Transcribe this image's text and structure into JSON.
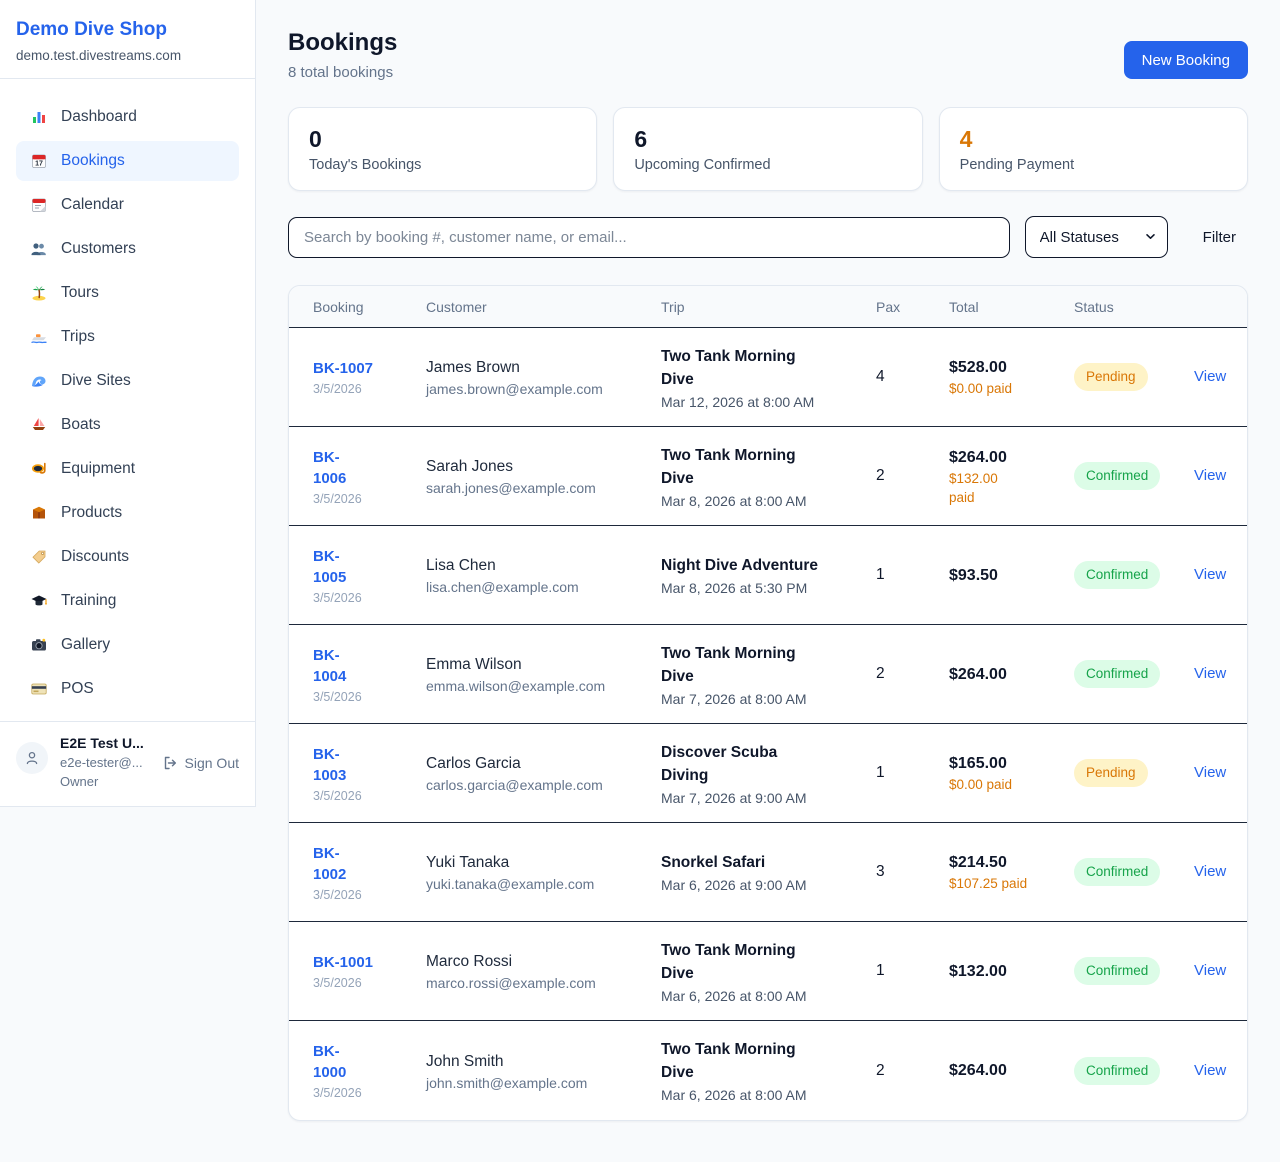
{
  "colors": {
    "accent": "#2563eb",
    "pending": "#d97706",
    "confirmed": "#16a34a"
  },
  "sidebar": {
    "brand": {
      "name": "Demo Dive Shop",
      "domain": "demo.test.divestreams.com"
    },
    "items": [
      {
        "icon": "dashboard",
        "label": "Dashboard",
        "active": false
      },
      {
        "icon": "bookings",
        "label": "Bookings",
        "active": true
      },
      {
        "icon": "calendar",
        "label": "Calendar",
        "active": false
      },
      {
        "icon": "customers",
        "label": "Customers",
        "active": false
      },
      {
        "icon": "tours",
        "label": "Tours",
        "active": false
      },
      {
        "icon": "trips",
        "label": "Trips",
        "active": false
      },
      {
        "icon": "dive-sites",
        "label": "Dive Sites",
        "active": false
      },
      {
        "icon": "boats",
        "label": "Boats",
        "active": false
      },
      {
        "icon": "equipment",
        "label": "Equipment",
        "active": false
      },
      {
        "icon": "products",
        "label": "Products",
        "active": false
      },
      {
        "icon": "discounts",
        "label": "Discounts",
        "active": false
      },
      {
        "icon": "training",
        "label": "Training",
        "active": false
      },
      {
        "icon": "gallery",
        "label": "Gallery",
        "active": false
      },
      {
        "icon": "pos",
        "label": "POS",
        "active": false
      }
    ],
    "user": {
      "name": "E2E Test U...",
      "email": "e2e-tester@...",
      "role": "Owner",
      "sign_out_label": "Sign Out"
    }
  },
  "header": {
    "title": "Bookings",
    "subtitle": "8 total bookings",
    "new_booking_label": "New Booking"
  },
  "stats": [
    {
      "value": "0",
      "label": "Today's Bookings",
      "color": "#0f172a"
    },
    {
      "value": "6",
      "label": "Upcoming Confirmed",
      "color": "#0f172a"
    },
    {
      "value": "4",
      "label": "Pending Payment",
      "color": "#d97706"
    }
  ],
  "filters": {
    "search_placeholder": "Search by booking #, customer name, or email...",
    "status_selected": "All Statuses",
    "filter_label": "Filter"
  },
  "table": {
    "columns": [
      "Booking",
      "Customer",
      "Trip",
      "Pax",
      "Total",
      "Status",
      ""
    ],
    "view_label": "View",
    "rows": [
      {
        "number": "BK-1007",
        "number_lines": [
          "BK-1007"
        ],
        "date": "3/5/2026",
        "customer_name": "James Brown",
        "customer_email": "james.brown@example.com",
        "trip_lines": [
          "Two Tank Morning",
          "Dive"
        ],
        "trip_datetime": "Mar 12, 2026 at 8:00 AM",
        "pax": "4",
        "total": "$528.00",
        "paid_lines": [
          "$0.00 paid"
        ],
        "status": "Pending"
      },
      {
        "number": "BK-1006",
        "number_lines": [
          "BK-",
          "1006"
        ],
        "date": "3/5/2026",
        "customer_name": "Sarah Jones",
        "customer_email": "sarah.jones@example.com",
        "trip_lines": [
          "Two Tank Morning",
          "Dive"
        ],
        "trip_datetime": "Mar 8, 2026 at 8:00 AM",
        "pax": "2",
        "total": "$264.00",
        "paid_lines": [
          "$132.00",
          "paid"
        ],
        "status": "Confirmed"
      },
      {
        "number": "BK-1005",
        "number_lines": [
          "BK-",
          "1005"
        ],
        "date": "3/5/2026",
        "customer_name": "Lisa Chen",
        "customer_email": "lisa.chen@example.com",
        "trip_lines": [
          "Night Dive Adventure"
        ],
        "trip_datetime": "Mar 8, 2026 at 5:30 PM",
        "pax": "1",
        "total": "$93.50",
        "paid_lines": [],
        "status": "Confirmed"
      },
      {
        "number": "BK-1004",
        "number_lines": [
          "BK-",
          "1004"
        ],
        "date": "3/5/2026",
        "customer_name": "Emma Wilson",
        "customer_email": "emma.wilson@example.com",
        "trip_lines": [
          "Two Tank Morning",
          "Dive"
        ],
        "trip_datetime": "Mar 7, 2026 at 8:00 AM",
        "pax": "2",
        "total": "$264.00",
        "paid_lines": [],
        "status": "Confirmed"
      },
      {
        "number": "BK-1003",
        "number_lines": [
          "BK-",
          "1003"
        ],
        "date": "3/5/2026",
        "customer_name": "Carlos Garcia",
        "customer_email": "carlos.garcia@example.com",
        "trip_lines": [
          "Discover Scuba",
          "Diving"
        ],
        "trip_datetime": "Mar 7, 2026 at 9:00 AM",
        "pax": "1",
        "total": "$165.00",
        "paid_lines": [
          "$0.00 paid"
        ],
        "status": "Pending"
      },
      {
        "number": "BK-1002",
        "number_lines": [
          "BK-",
          "1002"
        ],
        "date": "3/5/2026",
        "customer_name": "Yuki Tanaka",
        "customer_email": "yuki.tanaka@example.com",
        "trip_lines": [
          "Snorkel Safari"
        ],
        "trip_datetime": "Mar 6, 2026 at 9:00 AM",
        "pax": "3",
        "total": "$214.50",
        "paid_lines": [
          "$107.25 paid"
        ],
        "status": "Confirmed"
      },
      {
        "number": "BK-1001",
        "number_lines": [
          "BK-1001"
        ],
        "date": "3/5/2026",
        "customer_name": "Marco Rossi",
        "customer_email": "marco.rossi@example.com",
        "trip_lines": [
          "Two Tank Morning",
          "Dive"
        ],
        "trip_datetime": "Mar 6, 2026 at 8:00 AM",
        "pax": "1",
        "total": "$132.00",
        "paid_lines": [],
        "status": "Confirmed"
      },
      {
        "number": "BK-1000",
        "number_lines": [
          "BK-",
          "1000"
        ],
        "date": "3/5/2026",
        "customer_name": "John Smith",
        "customer_email": "john.smith@example.com",
        "trip_lines": [
          "Two Tank Morning",
          "Dive"
        ],
        "trip_datetime": "Mar 6, 2026 at 8:00 AM",
        "pax": "2",
        "total": "$264.00",
        "paid_lines": [],
        "status": "Confirmed"
      }
    ]
  }
}
